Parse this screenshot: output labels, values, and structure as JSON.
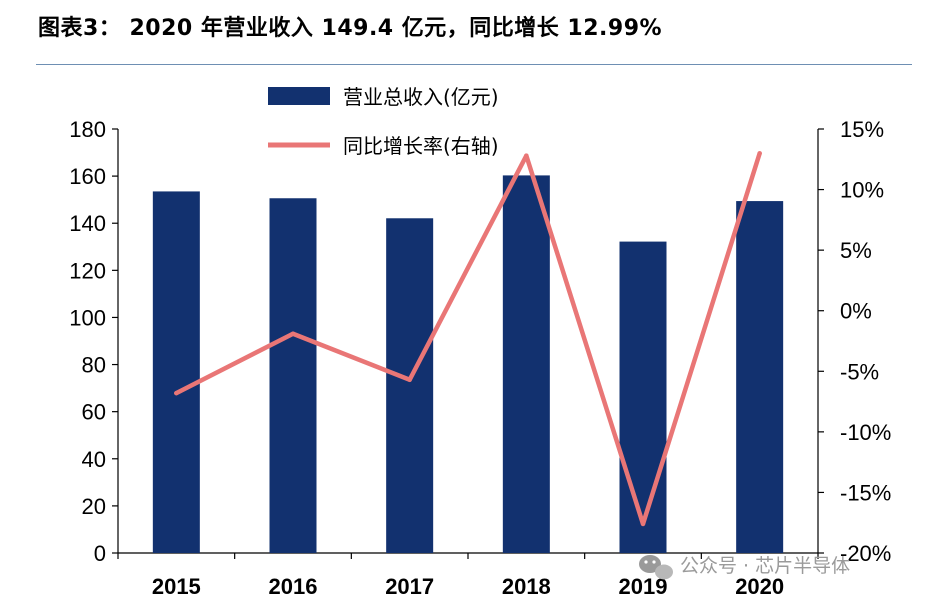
{
  "figure_title": "图表3：  2020 年营业收入 149.4 亿元，同比增长 12.99%",
  "watermark": "公众号 · 芯片半导体",
  "colors": {
    "bar": "#12316f",
    "line": "#e97676",
    "title_rule": "#6e8fb3"
  },
  "chart_data": {
    "type": "bar",
    "categories": [
      "2015",
      "2016",
      "2017",
      "2018",
      "2019",
      "2020"
    ],
    "series": [
      {
        "name": "营业总收入(亿元)",
        "type": "bar",
        "axis": "left",
        "values": [
          153.5,
          150.6,
          142.1,
          160.3,
          132.2,
          149.4
        ]
      },
      {
        "name": "同比增长率(右轴)",
        "type": "line",
        "axis": "right",
        "values": [
          -6.8,
          -1.9,
          -5.7,
          12.8,
          -17.6,
          12.99
        ]
      }
    ],
    "y_left": {
      "min": 0,
      "max": 180,
      "ticks": [
        "0",
        "20",
        "40",
        "60",
        "80",
        "100",
        "120",
        "140",
        "160",
        "180"
      ]
    },
    "y_right": {
      "min": -20,
      "max": 15,
      "ticks": [
        "-20%",
        "-15%",
        "-10%",
        "-5%",
        "0%",
        "5%",
        "10%",
        "15%"
      ]
    },
    "legend_position": "top-left",
    "grid": false
  }
}
